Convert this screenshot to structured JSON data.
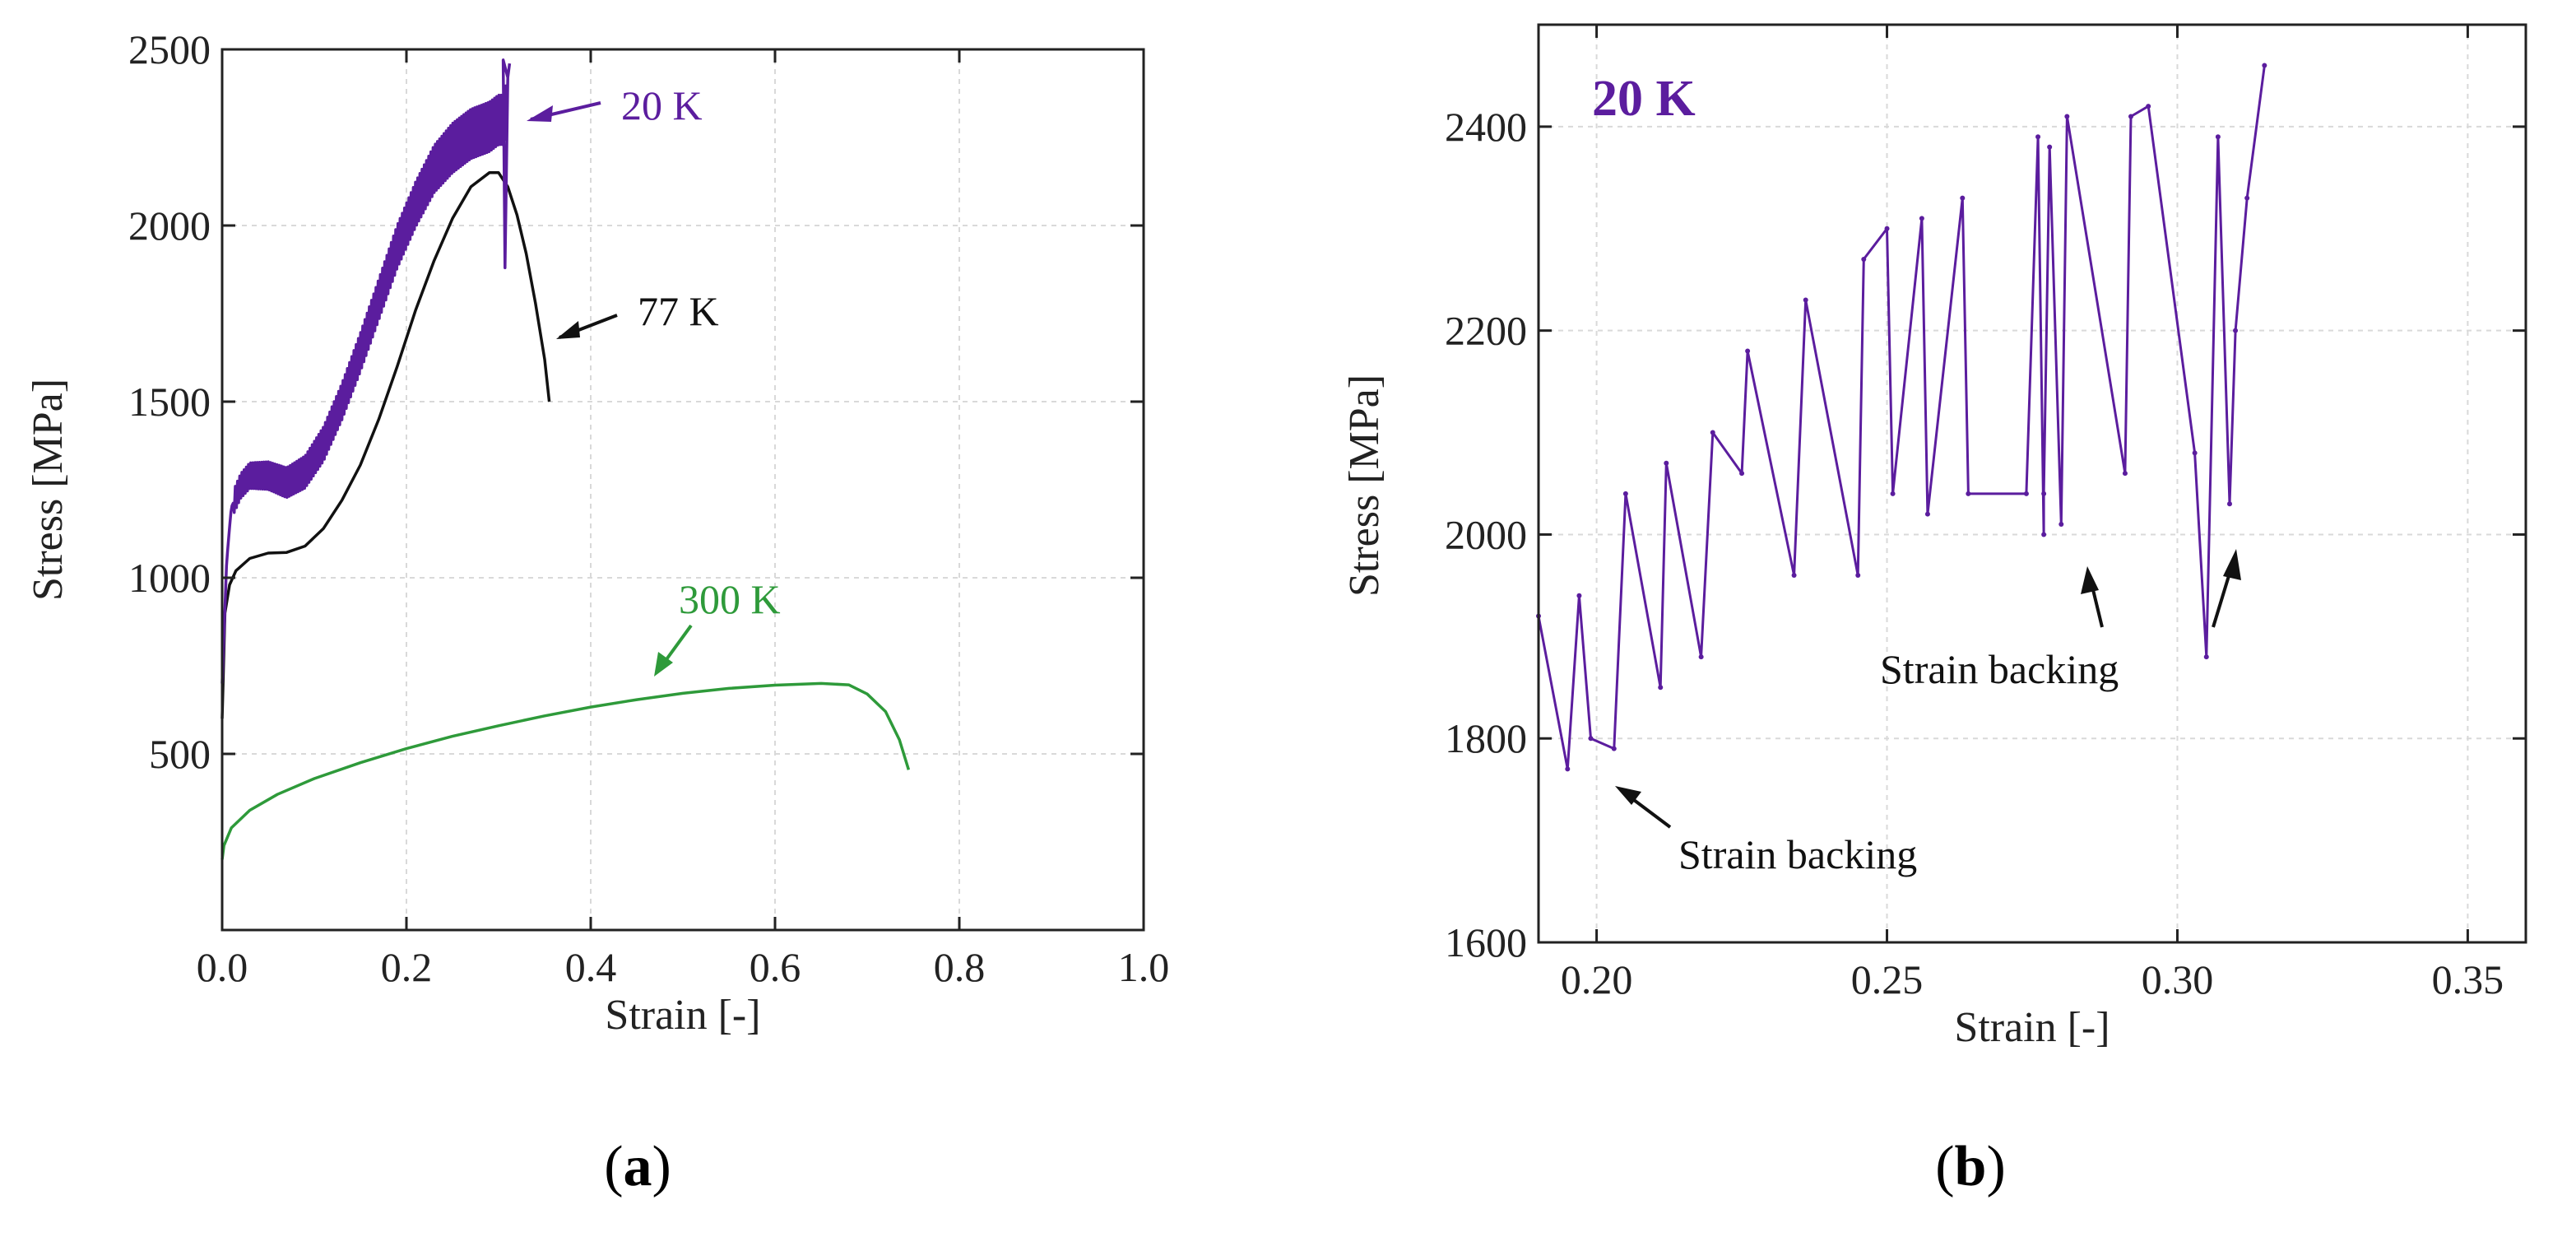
{
  "chart_data": [
    {
      "panel": "a",
      "type": "line",
      "caption": "(a)",
      "caption_letter": "a",
      "xlabel": "Strain [-]",
      "ylabel": "Stress [MPa]",
      "xlim": [
        0.0,
        1.0
      ],
      "ylim": [
        0,
        2500
      ],
      "xticks": [
        0.0,
        0.2,
        0.4,
        0.6,
        0.8,
        1.0
      ],
      "xtick_labels": [
        "0.0",
        "0.2",
        "0.4",
        "0.6",
        "0.8",
        "1.0"
      ],
      "yticks": [
        500,
        1000,
        1500,
        2000,
        2500
      ],
      "ytick_labels": [
        "500",
        "1000",
        "1500",
        "2000",
        "2500"
      ],
      "grid": true,
      "series": [
        {
          "name": "300 K",
          "color": "#2e9a3a",
          "x": [
            0.0,
            0.002,
            0.01,
            0.03,
            0.06,
            0.1,
            0.15,
            0.2,
            0.25,
            0.3,
            0.35,
            0.4,
            0.45,
            0.5,
            0.55,
            0.6,
            0.65,
            0.68,
            0.7,
            0.72,
            0.735,
            0.745
          ],
          "y": [
            200,
            240,
            290,
            340,
            385,
            430,
            475,
            515,
            550,
            580,
            608,
            633,
            654,
            672,
            686,
            695,
            700,
            696,
            670,
            620,
            540,
            455
          ]
        },
        {
          "name": "77 K",
          "color": "#111111",
          "x": [
            0.0,
            0.003,
            0.008,
            0.015,
            0.03,
            0.05,
            0.07,
            0.09,
            0.11,
            0.13,
            0.15,
            0.17,
            0.19,
            0.21,
            0.23,
            0.25,
            0.27,
            0.29,
            0.3,
            0.31,
            0.32,
            0.33,
            0.34,
            0.35,
            0.355
          ],
          "y": [
            600,
            900,
            980,
            1020,
            1055,
            1070,
            1072,
            1090,
            1140,
            1220,
            1320,
            1450,
            1600,
            1760,
            1900,
            2020,
            2110,
            2150,
            2150,
            2110,
            2030,
            1920,
            1780,
            1620,
            1500
          ]
        },
        {
          "name": "20 K",
          "color": "#5b1d9e",
          "x": [
            0.0,
            0.005,
            0.01,
            0.02,
            0.03,
            0.05,
            0.07,
            0.09,
            0.11,
            0.13,
            0.15,
            0.17,
            0.19,
            0.21,
            0.23,
            0.25,
            0.27,
            0.29,
            0.3,
            0.305,
            0.31
          ],
          "y": [
            700,
            1050,
            1200,
            1260,
            1290,
            1290,
            1270,
            1300,
            1380,
            1500,
            1640,
            1790,
            1940,
            2060,
            2160,
            2220,
            2260,
            2280,
            2300,
            2300,
            2350
          ],
          "serration_amplitude_mpa": 140
        }
      ],
      "annotations": [
        {
          "text": "20 K",
          "color": "#5b1d9e"
        },
        {
          "text": "77 K",
          "color": "#111111"
        },
        {
          "text": "300 K",
          "color": "#2e9a3a"
        }
      ]
    },
    {
      "panel": "b",
      "type": "line",
      "caption": "(b)",
      "caption_letter": "b",
      "title": "20 K",
      "title_color": "#5b1d9e",
      "xlabel": "Strain [-]",
      "ylabel": "Stress [MPa]",
      "xlim": [
        0.19,
        0.36
      ],
      "ylim": [
        1600,
        2500
      ],
      "xticks": [
        0.2,
        0.25,
        0.3,
        0.35
      ],
      "xtick_labels": [
        "0.20",
        "0.25",
        "0.30",
        "0.35"
      ],
      "yticks": [
        1600,
        1800,
        2000,
        2200,
        2400
      ],
      "ytick_labels": [
        "1600",
        "1800",
        "2000",
        "2200",
        "2400"
      ],
      "grid": true,
      "series": [
        {
          "name": "20 K",
          "color": "#5b1d9e",
          "x": [
            0.19,
            0.195,
            0.197,
            0.199,
            0.203,
            0.205,
            0.211,
            0.212,
            0.218,
            0.22,
            0.225,
            0.226,
            0.234,
            0.236,
            0.245,
            0.246,
            0.25,
            0.251,
            0.256,
            0.257,
            0.263,
            0.264,
            0.274,
            0.276,
            0.277,
            0.277,
            0.278,
            0.28,
            0.281,
            0.291,
            0.292,
            0.295,
            0.303,
            0.305,
            0.307,
            0.309,
            0.31,
            0.312,
            0.315
          ],
          "y": [
            1920,
            1770,
            1940,
            1800,
            1790,
            2040,
            1850,
            2070,
            1880,
            2100,
            2060,
            2180,
            1960,
            2230,
            1960,
            2270,
            2300,
            2040,
            2310,
            2020,
            2330,
            2040,
            2040,
            2390,
            2000,
            2040,
            2380,
            2010,
            2410,
            2060,
            2410,
            2420,
            2080,
            1880,
            2390,
            2030,
            2200,
            2330,
            2460
          ]
        }
      ],
      "annotations": [
        {
          "text": "Strain backing"
        },
        {
          "text": "Strain backing"
        }
      ]
    }
  ]
}
